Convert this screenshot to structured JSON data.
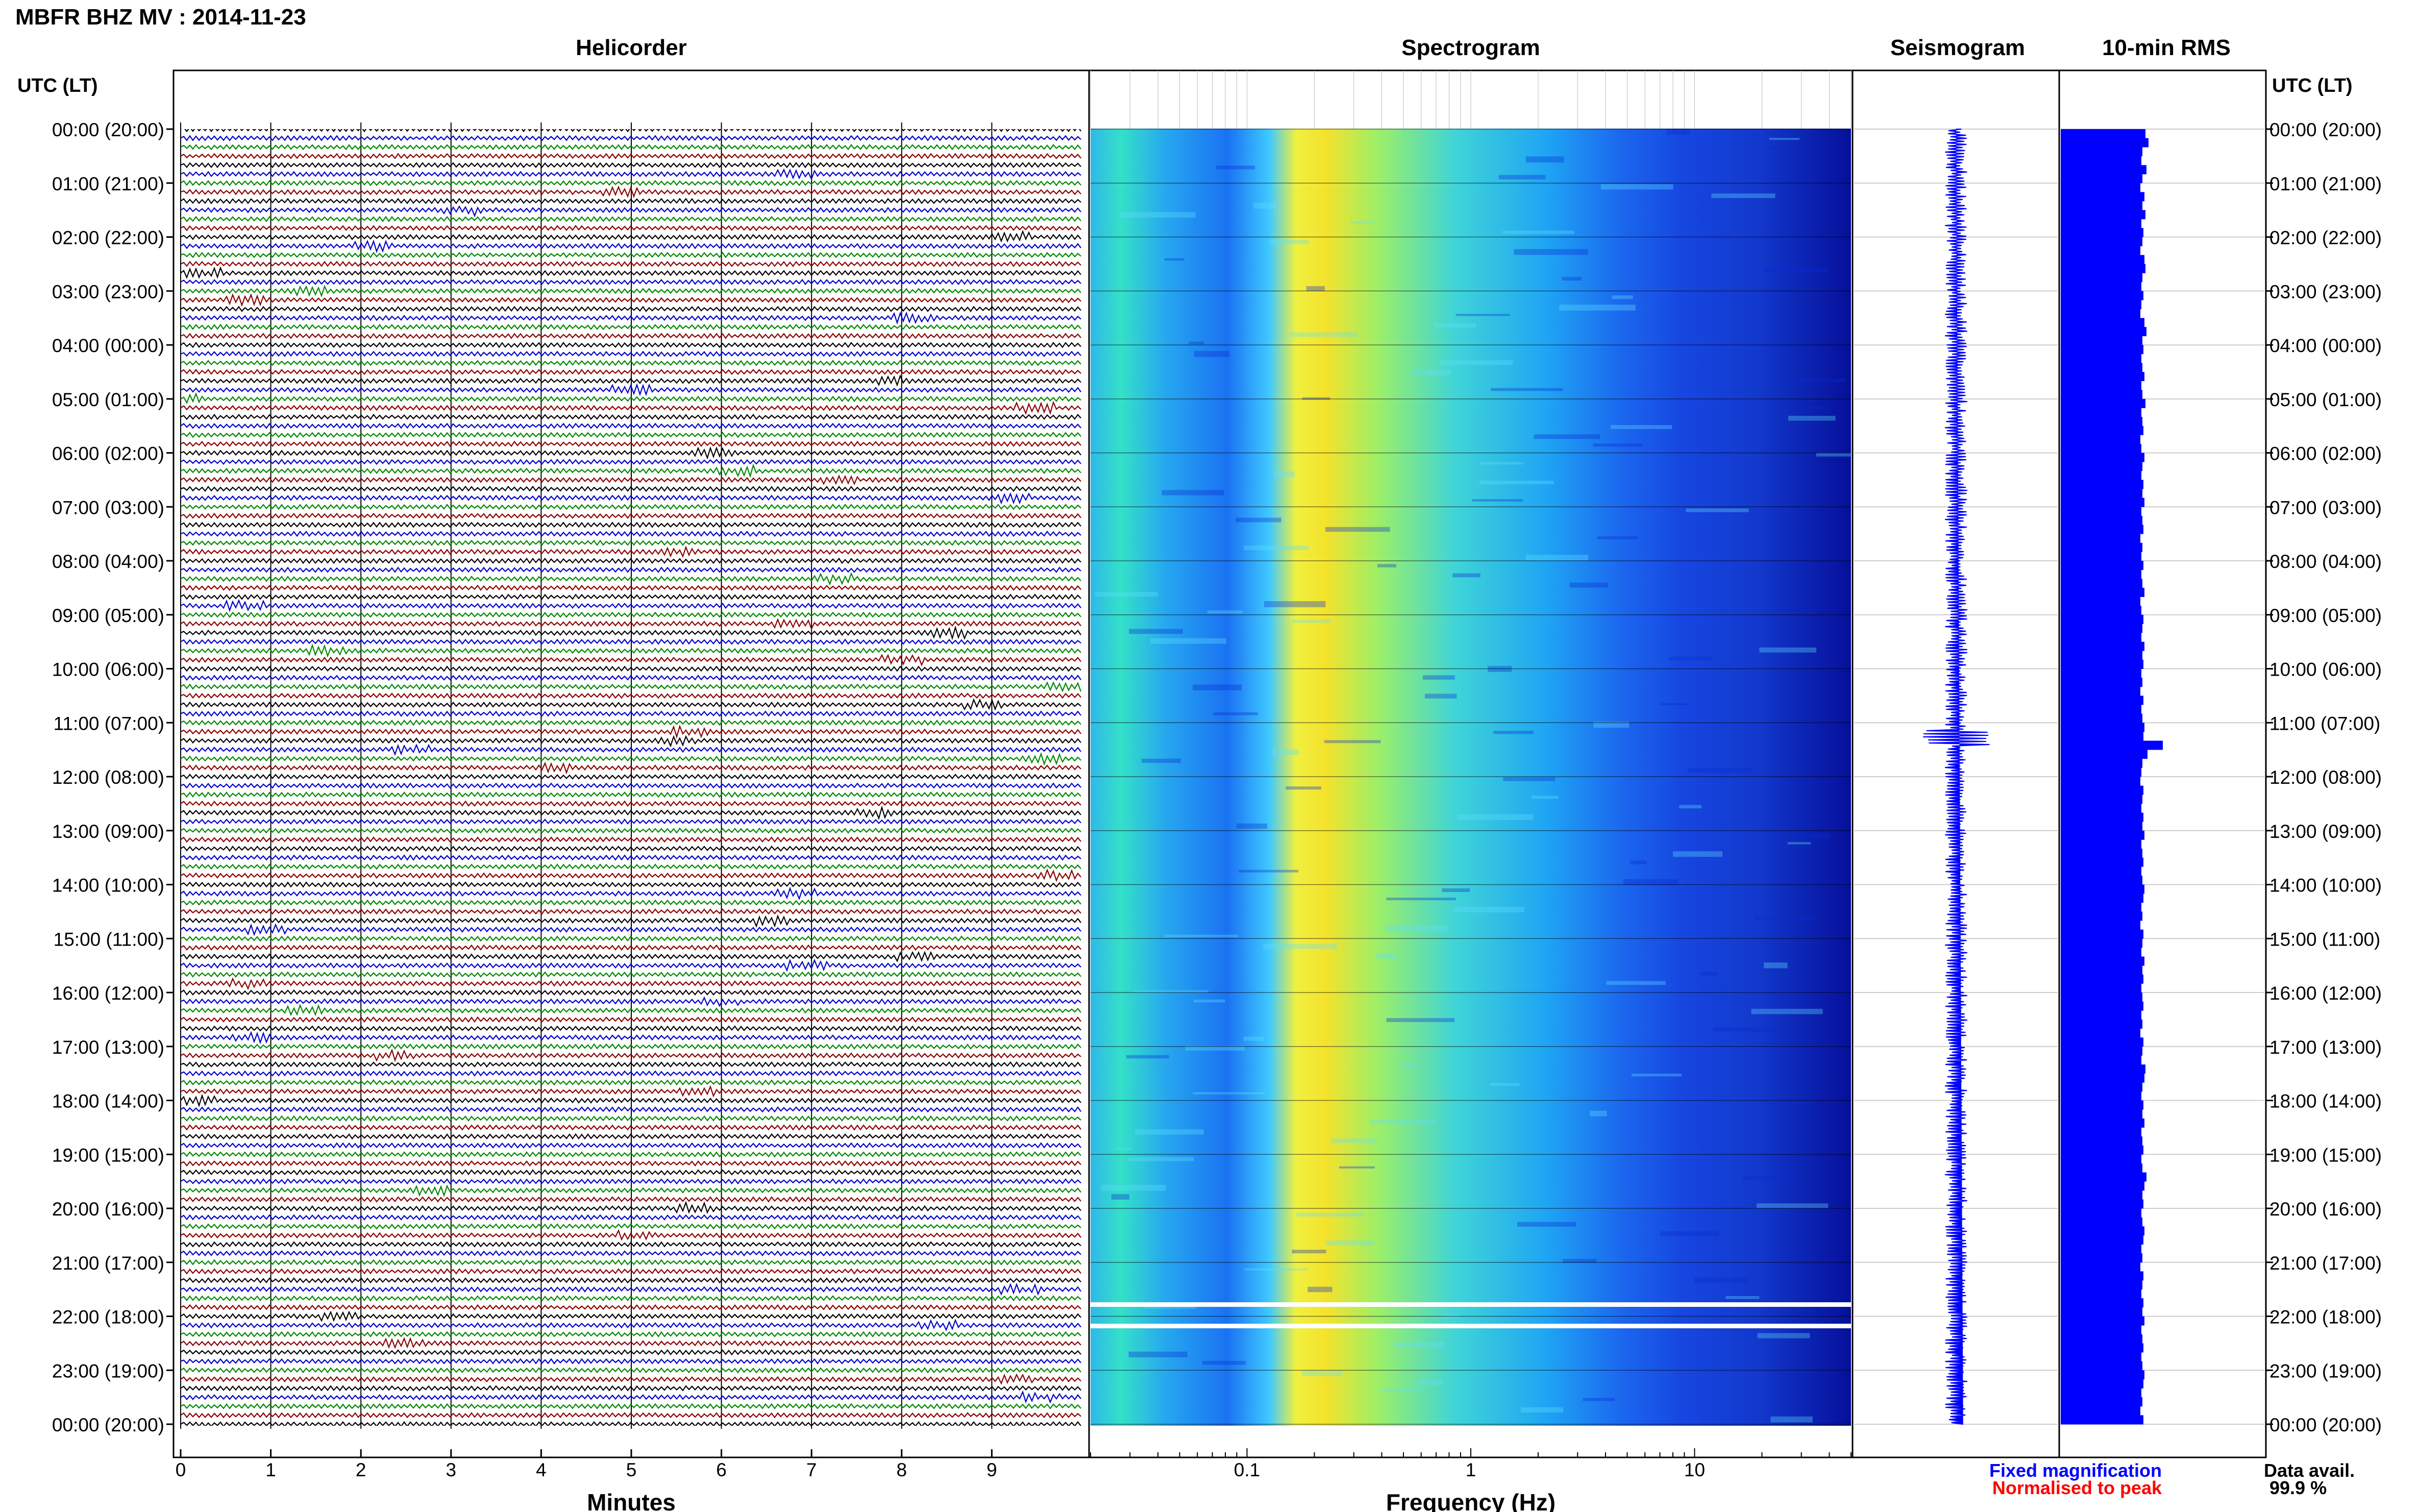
{
  "header": {
    "station_title": "MBFR BHZ MV : 2014-11-23",
    "helicorder_title": "Helicorder",
    "spectrogram_title": "Spectrogram",
    "seismogram_title": "Seismogram",
    "rms_title": "10-min RMS",
    "left_axis_label": "UTC (LT)",
    "right_axis_label": "UTC (LT)"
  },
  "footer": {
    "helicorder_xlabel": "Minutes",
    "spectrogram_xlabel": "Frequency (Hz)",
    "legend_fixed": "Fixed magnification",
    "legend_normalised": "Normalised to peak",
    "data_avail_label": "Data avail.",
    "data_avail_value": "99.9 %"
  },
  "colors": {
    "trace_cycle": [
      "#000000",
      "#0000cc",
      "#008800",
      "#8b0000"
    ],
    "seismogram": "#0000ff",
    "rms_bar": "#0000ff",
    "legend_fixed": "#0000ff",
    "legend_normalised": "#ff0000"
  },
  "chart_data": [
    {
      "type": "line",
      "name": "Helicorder",
      "title": "Helicorder",
      "xlabel": "Minutes",
      "xlim": [
        0,
        10
      ],
      "xticks": [
        "0",
        "1",
        "2",
        "3",
        "4",
        "5",
        "6",
        "7",
        "8",
        "9"
      ],
      "traces_per_hour": 6,
      "row_labels": [
        "00:00 (20:00)",
        "01:00 (21:00)",
        "02:00 (22:00)",
        "03:00 (23:00)",
        "04:00 (00:00)",
        "05:00 (01:00)",
        "06:00 (02:00)",
        "07:00 (03:00)",
        "08:00 (04:00)",
        "09:00 (05:00)",
        "10:00 (06:00)",
        "11:00 (07:00)",
        "12:00 (08:00)",
        "13:00 (09:00)",
        "14:00 (10:00)",
        "15:00 (11:00)",
        "16:00 (12:00)",
        "17:00 (13:00)",
        "18:00 (14:00)",
        "19:00 (15:00)",
        "20:00 (16:00)",
        "21:00 (17:00)",
        "22:00 (18:00)",
        "23:00 (19:00)",
        "00:00 (20:00)"
      ]
    },
    {
      "type": "heatmap",
      "name": "Spectrogram",
      "title": "Spectrogram",
      "xlabel": "Frequency (Hz)",
      "xscale": "log",
      "xlim": [
        0.02,
        50
      ],
      "xticks": [
        "0.1",
        "1",
        "10"
      ]
    },
    {
      "type": "line",
      "name": "Seismogram",
      "title": "Seismogram",
      "color": "#0000ff"
    },
    {
      "type": "bar",
      "name": "10-min RMS",
      "title": "10-min RMS",
      "orientation": "horizontal",
      "color": "#0000ff",
      "values": [
        0.83,
        0.86,
        0.8,
        0.79,
        0.84,
        0.8,
        0.78,
        0.82,
        0.8,
        0.83,
        0.79,
        0.81,
        0.8,
        0.78,
        0.82,
        0.83,
        0.8,
        0.79,
        0.81,
        0.79,
        0.78,
        0.82,
        0.84,
        0.8,
        0.81,
        0.79,
        0.8,
        0.82,
        0.79,
        0.8,
        0.83,
        0.79,
        0.8,
        0.81,
        0.78,
        0.79,
        0.82,
        0.8,
        0.79,
        0.81,
        0.8,
        0.82,
        0.79,
        0.8,
        0.81,
        0.78,
        0.8,
        0.79,
        0.81,
        0.79,
        0.8,
        0.82,
        0.78,
        0.79,
        0.81,
        0.8,
        0.79,
        0.82,
        0.8,
        0.81,
        0.79,
        0.8,
        0.78,
        0.81,
        0.79,
        0.8,
        0.82,
        0.81,
        1.0,
        0.85,
        0.8,
        0.79,
        0.78,
        0.81,
        0.8,
        0.79,
        0.81,
        0.8,
        0.82,
        0.79,
        0.8,
        0.81,
        0.79,
        0.8,
        0.82,
        0.81,
        0.79,
        0.8,
        0.78,
        0.81,
        0.8,
        0.79,
        0.82,
        0.8,
        0.81,
        0.79,
        0.8,
        0.81,
        0.79,
        0.8,
        0.78,
        0.81,
        0.8,
        0.79,
        0.83,
        0.82,
        0.8,
        0.79,
        0.81,
        0.8,
        0.82,
        0.79,
        0.8,
        0.81,
        0.79,
        0.8,
        0.84,
        0.82,
        0.8,
        0.81,
        0.79,
        0.8,
        0.82,
        0.81,
        0.79,
        0.8,
        0.78,
        0.81,
        0.8,
        0.79,
        0.81,
        0.8,
        0.82,
        0.79,
        0.8,
        0.81,
        0.79,
        0.8,
        0.82,
        0.81,
        0.79,
        0.8,
        0.78,
        0.81
      ]
    }
  ]
}
